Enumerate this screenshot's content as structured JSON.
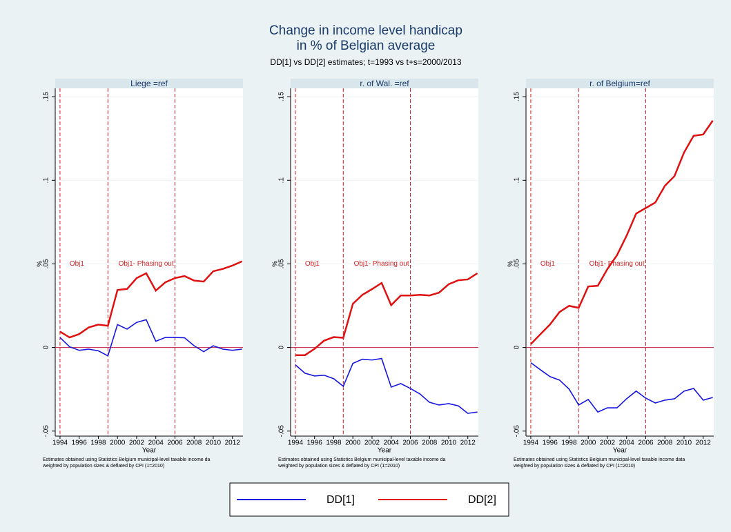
{
  "title": [
    "Change in income level handicap",
    "in % of Belgian average"
  ],
  "subtitle": "DD[1] vs DD[2] estimates; t=1993 vs t+s=2000/2013",
  "chart_data": [
    {
      "type": "line",
      "title": "Liege =ref",
      "xlabel": "Year",
      "ylabel": "%",
      "note": [
        "Estimates obtained using Statistics Belgium municipal-level taxable income da",
        "weighted by population sizes & deflated by CPI (1=2010)"
      ],
      "x": [
        1994,
        1995,
        1996,
        1997,
        1998,
        1999,
        2000,
        2001,
        2002,
        2003,
        2004,
        2005,
        2006,
        2007,
        2008,
        2009,
        2010,
        2011,
        2012,
        2013
      ],
      "series": [
        {
          "name": "DD[1]",
          "color": "#1616e0",
          "values": [
            0.006,
            0.0004,
            -0.0017,
            -0.001,
            -0.002,
            -0.005,
            0.0137,
            0.011,
            0.015,
            0.0166,
            0.0037,
            0.006,
            0.006,
            0.0058,
            0.001,
            -0.0025,
            0.001,
            -0.001,
            -0.0017,
            -0.001
          ]
        },
        {
          "name": "DD[2]",
          "color": "#e01010",
          "values": [
            0.0095,
            0.006,
            0.008,
            0.012,
            0.0137,
            0.013,
            0.0344,
            0.035,
            0.0415,
            0.0444,
            0.034,
            0.039,
            0.0415,
            0.0427,
            0.04,
            0.0394,
            0.0456,
            0.047,
            0.049,
            0.0515
          ]
        }
      ],
      "xlim": [
        1993.5,
        2013.1
      ],
      "xticks": [
        1994,
        1996,
        1998,
        2000,
        2002,
        2004,
        2006,
        2008,
        2010,
        2012
      ],
      "ylim": [
        -0.053,
        0.155
      ],
      "yticks": [
        {
          "value": -0.05,
          "label": "-.05"
        },
        0,
        {
          "value": 0.05,
          "label": ".05"
        },
        {
          "value": 0.1,
          "label": ".1"
        },
        {
          "value": 0.15,
          "label": ".15"
        }
      ],
      "xlines": [
        1994,
        1999,
        2006
      ],
      "yline": 0,
      "annotations": [
        {
          "text": "Obj1",
          "x": 1995,
          "y": 0.05
        },
        {
          "text": "Obj1- Phasing out",
          "x": 2000.1,
          "y": 0.05
        }
      ]
    },
    {
      "type": "line",
      "title": "r. of Wal. =ref",
      "xlabel": "Year",
      "ylabel": "%",
      "note": [
        "Estimates obtained using Statistics Belgium municipal-level taxable income da",
        "weighted by population sizes & deflated by CPI (1=2010)"
      ],
      "x": [
        1994,
        1995,
        1996,
        1997,
        1998,
        1999,
        2000,
        2001,
        2002,
        2003,
        2004,
        2005,
        2006,
        2007,
        2008,
        2009,
        2010,
        2011,
        2012,
        2013
      ],
      "series": [
        {
          "name": "DD[1]",
          "color": "#1616e0",
          "values": [
            -0.0104,
            -0.0154,
            -0.017,
            -0.0166,
            -0.0187,
            -0.0232,
            -0.0095,
            -0.007,
            -0.0075,
            -0.0066,
            -0.0237,
            -0.0216,
            -0.0245,
            -0.0278,
            -0.0328,
            -0.0344,
            -0.0336,
            -0.0349,
            -0.0394,
            -0.0386
          ]
        },
        {
          "name": "DD[2]",
          "color": "#e01010",
          "values": [
            -0.0046,
            -0.0046,
            -0.0008,
            0.0041,
            0.0062,
            0.0058,
            0.0261,
            0.0315,
            0.0349,
            0.0386,
            0.0253,
            0.0311,
            0.0311,
            0.0315,
            0.0311,
            0.0328,
            0.0378,
            0.0402,
            0.0407,
            0.0444
          ]
        }
      ],
      "xlim": [
        1993.5,
        2013.1
      ],
      "xticks": [
        1994,
        1996,
        1998,
        2000,
        2002,
        2004,
        2006,
        2008,
        2010,
        2012
      ],
      "ylim": [
        -0.053,
        0.155
      ],
      "yticks": [
        {
          "value": -0.05,
          "label": "-.05"
        },
        0,
        {
          "value": 0.05,
          "label": ".05"
        },
        {
          "value": 0.1,
          "label": ".1"
        },
        {
          "value": 0.15,
          "label": ".15"
        }
      ],
      "xlines": [
        1994,
        1999,
        2006
      ],
      "yline": 0,
      "annotations": [
        {
          "text": "Obj1",
          "x": 1995,
          "y": 0.05
        },
        {
          "text": "Obj1- Phasing out",
          "x": 2000.1,
          "y": 0.05
        }
      ]
    },
    {
      "type": "line",
      "title": "r. of Belgium=ref",
      "xlabel": "Year",
      "ylabel": "%",
      "note": [
        "Estimates obtained using Statistics Belgium municipal-level taxable income data",
        "weighted by population sizes & deflated by CPI (1=2010)"
      ],
      "x": [
        1994,
        1995,
        1996,
        1997,
        1998,
        1999,
        2000,
        2001,
        2002,
        2003,
        2004,
        2005,
        2006,
        2007,
        2008,
        2009,
        2010,
        2011,
        2012,
        2013
      ],
      "series": [
        {
          "name": "DD[1]",
          "color": "#1616e0",
          "values": [
            -0.0091,
            -0.0133,
            -0.0174,
            -0.0195,
            -0.0249,
            -0.0344,
            -0.0311,
            -0.0386,
            -0.0361,
            -0.0361,
            -0.0307,
            -0.0261,
            -0.0303,
            -0.0332,
            -0.0315,
            -0.0307,
            -0.0261,
            -0.0245,
            -0.0315,
            -0.0299
          ]
        },
        {
          "name": "DD[2]",
          "color": "#e01010",
          "values": [
            0.002,
            0.0079,
            0.0137,
            0.0212,
            0.0249,
            0.0237,
            0.0365,
            0.0369,
            0.0469,
            0.0552,
            0.0668,
            0.0801,
            0.0834,
            0.0867,
            0.0967,
            0.1025,
            0.1166,
            0.1266,
            0.1274,
            0.1357
          ]
        }
      ],
      "xlim": [
        1993.5,
        2013.1
      ],
      "xticks": [
        1994,
        1996,
        1998,
        2000,
        2002,
        2004,
        2006,
        2008,
        2010,
        2012
      ],
      "ylim": [
        -0.053,
        0.155
      ],
      "yticks": [
        {
          "value": -0.05,
          "label": "-.05"
        },
        0,
        {
          "value": 0.05,
          "label": ".05"
        },
        {
          "value": 0.1,
          "label": ".1"
        },
        {
          "value": 0.15,
          "label": ".15"
        }
      ],
      "xlines": [
        1994,
        1999,
        2006
      ],
      "yline": 0,
      "annotations": [
        {
          "text": "Obj1",
          "x": 1995,
          "y": 0.05
        },
        {
          "text": "Obj1- Phasing out",
          "x": 2000.1,
          "y": 0.05
        }
      ]
    }
  ]
}
